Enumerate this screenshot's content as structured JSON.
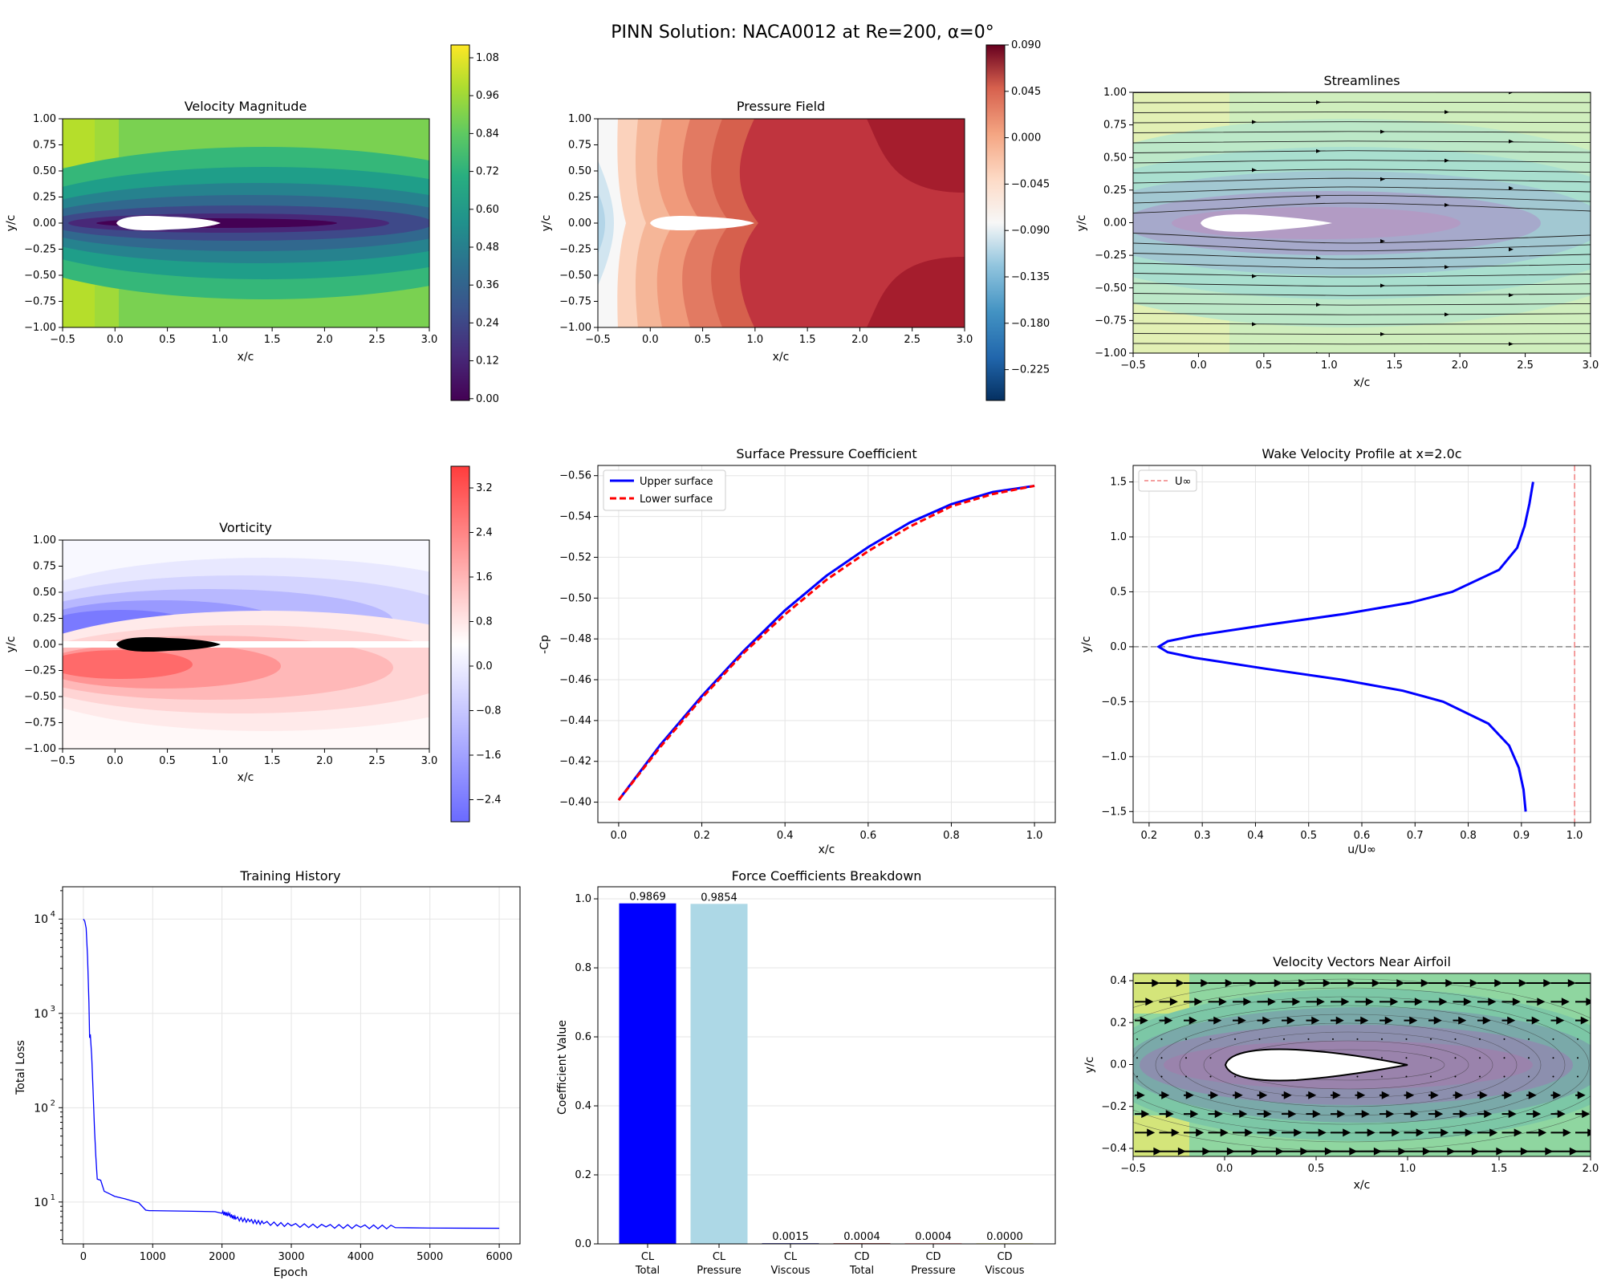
{
  "suptitle": "PINN Solution: NACA0012 at Re=200, α=0°",
  "panels": {
    "velocity": {
      "title": "Velocity Magnitude",
      "xlabel": "x/c",
      "ylabel": "y/c",
      "xticks": [
        "−0.5",
        "0.0",
        "0.5",
        "1.0",
        "1.5",
        "2.0",
        "2.5",
        "3.0"
      ],
      "yticks": [
        "1.00",
        "0.75",
        "0.50",
        "0.25",
        "0.00",
        "−0.25",
        "−0.50",
        "−0.75",
        "−1.00"
      ],
      "colorbar_ticks": [
        "1.08",
        "0.96",
        "0.84",
        "0.72",
        "0.60",
        "0.48",
        "0.36",
        "0.24",
        "0.12",
        "0.00"
      ]
    },
    "pressure": {
      "title": "Pressure Field",
      "xlabel": "x/c",
      "ylabel": "y/c",
      "xticks": [
        "−0.5",
        "0.0",
        "0.5",
        "1.0",
        "1.5",
        "2.0",
        "2.5",
        "3.0"
      ],
      "yticks": [
        "1.00",
        "0.75",
        "0.50",
        "0.25",
        "0.00",
        "−0.25",
        "−0.50",
        "−0.75",
        "−1.00"
      ],
      "colorbar_ticks": [
        "0.090",
        "0.045",
        "0.000",
        "−0.045",
        "−0.090",
        "−0.135",
        "−0.180",
        "−0.225"
      ]
    },
    "streamlines": {
      "title": "Streamlines",
      "xlabel": "x/c",
      "ylabel": "y/c",
      "xticks": [
        "−0.5",
        "0.0",
        "0.5",
        "1.0",
        "1.5",
        "2.0",
        "2.5",
        "3.0"
      ],
      "yticks": [
        "1.00",
        "0.75",
        "0.50",
        "0.25",
        "0.00",
        "−0.25",
        "−0.50",
        "−0.75",
        "−1.00"
      ]
    },
    "vorticity": {
      "title": "Vorticity",
      "xlabel": "x/c",
      "ylabel": "y/c",
      "xticks": [
        "−0.5",
        "0.0",
        "0.5",
        "1.0",
        "1.5",
        "2.0",
        "2.5",
        "3.0"
      ],
      "yticks": [
        "1.00",
        "0.75",
        "0.50",
        "0.25",
        "0.00",
        "−0.25",
        "−0.50",
        "−0.75",
        "−1.00"
      ],
      "colorbar_ticks": [
        "3.2",
        "2.4",
        "1.6",
        "0.8",
        "0.0",
        "−0.8",
        "−1.6",
        "−2.4"
      ]
    },
    "velocity_vectors": {
      "title": "Velocity Vectors Near Airfoil",
      "xlabel": "x/c",
      "ylabel": "y/c",
      "xticks": [
        "−0.5",
        "0.0",
        "0.5",
        "1.0",
        "1.5",
        "2.0"
      ],
      "yticks": [
        "0.4",
        "0.2",
        "0.0",
        "−0.2",
        "−0.4"
      ]
    }
  },
  "colors": {
    "upper": "#0000ff",
    "lower": "#ff0000",
    "bar_total": "#0000ff",
    "bar_pressure": "#add8e6",
    "uinf_line": "#f08080",
    "loss_line": "#0000ff"
  },
  "chart_data": [
    {
      "id": "cp",
      "type": "line",
      "title": "Surface Pressure Coefficient",
      "xlabel": "x/c",
      "ylabel": "-Cp",
      "xlim": [
        -0.05,
        1.05
      ],
      "ylim": [
        -0.39,
        -0.565
      ],
      "inverted_y": true,
      "grid": true,
      "legend": "top-left",
      "xticks": [
        "0.0",
        "0.2",
        "0.4",
        "0.6",
        "0.8",
        "1.0"
      ],
      "yticks": [
        "−0.56",
        "−0.54",
        "−0.52",
        "−0.50",
        "−0.48",
        "−0.46",
        "−0.44",
        "−0.42",
        "−0.40"
      ],
      "series": [
        {
          "name": "Upper surface",
          "x": [
            0.0,
            0.1,
            0.2,
            0.3,
            0.4,
            0.5,
            0.6,
            0.7,
            0.8,
            0.9,
            1.0
          ],
          "y": [
            -0.401,
            -0.428,
            -0.452,
            -0.474,
            -0.494,
            -0.511,
            -0.525,
            -0.537,
            -0.546,
            -0.552,
            -0.555
          ]
        },
        {
          "name": "Lower surface",
          "x": [
            0.0,
            0.1,
            0.2,
            0.3,
            0.4,
            0.5,
            0.6,
            0.7,
            0.8,
            0.9,
            1.0
          ],
          "y": [
            -0.401,
            -0.427,
            -0.451,
            -0.473,
            -0.492,
            -0.509,
            -0.523,
            -0.535,
            -0.545,
            -0.551,
            -0.555
          ]
        }
      ]
    },
    {
      "id": "wake",
      "type": "line",
      "title": "Wake Velocity Profile at x=2.0c",
      "xlabel": "u/U∞",
      "ylabel": "y/c",
      "xlim": [
        0.17,
        1.03
      ],
      "ylim": [
        -1.6,
        1.65
      ],
      "grid": true,
      "legend": "top-left",
      "xticks": [
        "0.2",
        "0.3",
        "0.4",
        "0.5",
        "0.6",
        "0.7",
        "0.8",
        "0.9",
        "1.0"
      ],
      "yticks": [
        "1.5",
        "1.0",
        "0.5",
        "0.0",
        "−0.5",
        "−1.0",
        "−1.5"
      ],
      "reference_vline": {
        "name": "U∞",
        "x": 1.0
      },
      "reference_hline": {
        "y": 0.0
      },
      "series": [
        {
          "name": "",
          "y": [
            -1.5,
            -1.3,
            -1.1,
            -0.9,
            -0.7,
            -0.5,
            -0.4,
            -0.3,
            -0.2,
            -0.1,
            -0.05,
            0.0,
            0.05,
            0.1,
            0.2,
            0.3,
            0.4,
            0.5,
            0.7,
            0.9,
            1.1,
            1.3,
            1.5
          ],
          "x": [
            0.908,
            0.904,
            0.895,
            0.877,
            0.838,
            0.753,
            0.677,
            0.562,
            0.419,
            0.285,
            0.235,
            0.218,
            0.235,
            0.285,
            0.423,
            0.569,
            0.69,
            0.77,
            0.858,
            0.892,
            0.906,
            0.915,
            0.922
          ]
        }
      ]
    },
    {
      "id": "loss",
      "type": "line",
      "title": "Training History",
      "xlabel": "Epoch",
      "ylabel": "Total Loss",
      "yscale": "log",
      "xlim": [
        -300,
        6300
      ],
      "ylim": [
        3.6,
        22000
      ],
      "grid": true,
      "xticks": [
        "0",
        "1000",
        "2000",
        "3000",
        "4000",
        "5000",
        "6000"
      ],
      "ytick_values": [
        10,
        100,
        1000,
        10000
      ],
      "yticks": [
        "10",
        "10",
        "10",
        "10"
      ],
      "ytick_exponents": [
        "1",
        "2",
        "3",
        "4"
      ],
      "series": [
        {
          "name": "",
          "x": [
            0,
            20,
            40,
            60,
            80,
            90,
            100,
            120,
            140,
            160,
            180,
            200,
            250,
            300,
            350,
            450,
            600,
            800,
            900,
            950,
            1000,
            1500,
            1900,
            2000,
            2100,
            2200,
            2400,
            2600,
            3000,
            3500,
            4000,
            4500,
            5000,
            5500,
            6000
          ],
          "y": [
            10000,
            9500,
            8000,
            4000,
            1300,
            550,
            600,
            350,
            150,
            60,
            30,
            17.5,
            17,
            13,
            12.5,
            11.5,
            10.8,
            9.8,
            8.2,
            8.1,
            8.1,
            8.0,
            7.9,
            7.6,
            7.2,
            6.6,
            6.2,
            5.9,
            5.6,
            5.45,
            5.4,
            5.35,
            5.3,
            5.28,
            5.27
          ]
        }
      ]
    },
    {
      "id": "forces",
      "type": "bar",
      "title": "Force Coefficients Breakdown",
      "ylabel": "Coefficient Value",
      "ylim": [
        0,
        1.035
      ],
      "grid": true,
      "yticks": [
        "0.0",
        "0.2",
        "0.4",
        "0.6",
        "0.8",
        "1.0"
      ],
      "categories": [
        [
          "CL",
          "Total"
        ],
        [
          "CL",
          "Pressure"
        ],
        [
          "CL",
          "Viscous"
        ],
        [
          "CD",
          "Total"
        ],
        [
          "CD",
          "Pressure"
        ],
        [
          "CD",
          "Viscous"
        ]
      ],
      "values": [
        0.9869,
        0.9854,
        0.0015,
        0.0004,
        0.0004,
        0.0
      ],
      "labels": [
        "0.9869",
        "0.9854",
        "0.0015",
        "0.0004",
        "0.0004",
        "0.0000"
      ]
    }
  ]
}
